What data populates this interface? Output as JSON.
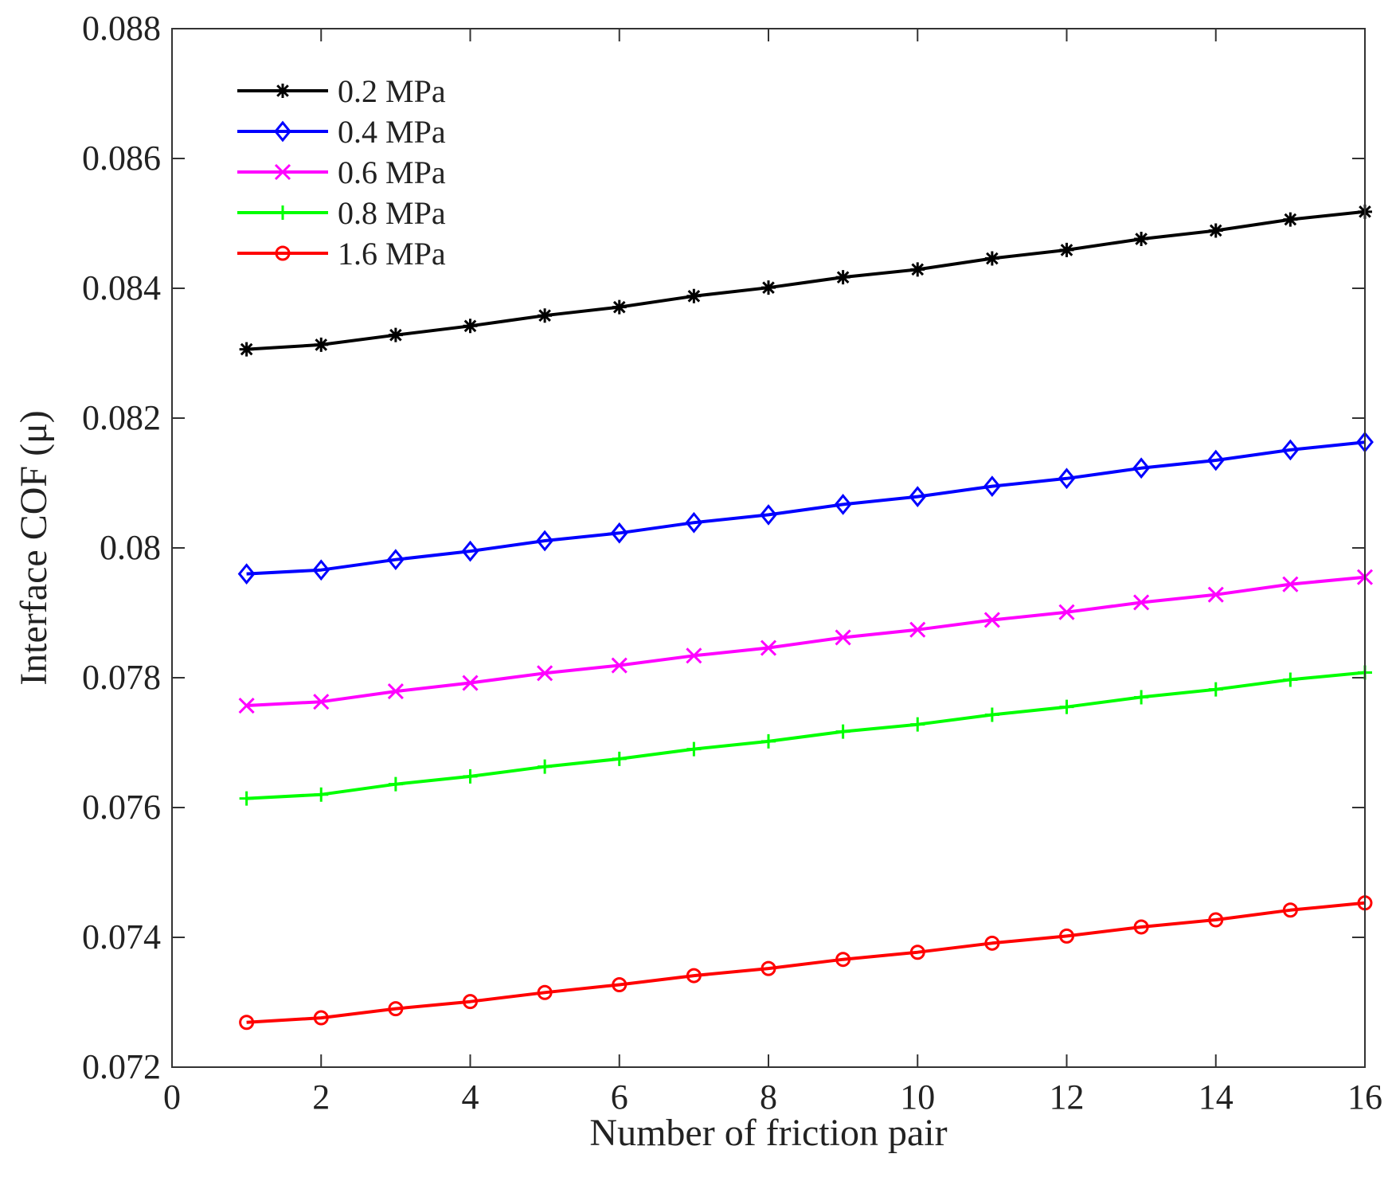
{
  "chart_data": {
    "type": "line",
    "title": "",
    "xlabel": "Number of friction pair",
    "ylabel": "Interface COF (μ)",
    "xlim": [
      0,
      16
    ],
    "ylim": [
      0.072,
      0.088
    ],
    "xticks": [
      "0",
      "2",
      "4",
      "6",
      "8",
      "10",
      "12",
      "14",
      "16"
    ],
    "yticks": [
      "0.072",
      "0.074",
      "0.076",
      "0.078",
      "0.08",
      "0.082",
      "0.084",
      "0.086",
      "0.088"
    ],
    "grid": false,
    "legend_position": "top-left",
    "x": [
      1,
      2,
      3,
      4,
      5,
      6,
      7,
      8,
      9,
      10,
      11,
      12,
      13,
      14,
      15,
      16
    ],
    "series": [
      {
        "name": "0.2 MPa",
        "color": "#000000",
        "marker": "asterisk",
        "values": [
          0.08306,
          0.08313,
          0.08328,
          0.08342,
          0.08358,
          0.08371,
          0.08388,
          0.08401,
          0.08417,
          0.08429,
          0.08446,
          0.08459,
          0.08476,
          0.08489,
          0.08506,
          0.08518
        ]
      },
      {
        "name": "0.4 MPa",
        "color": "#0000ff",
        "marker": "diamond",
        "values": [
          0.0796,
          0.07966,
          0.07982,
          0.07995,
          0.08011,
          0.08023,
          0.08039,
          0.08051,
          0.08067,
          0.08079,
          0.08095,
          0.08107,
          0.08123,
          0.08135,
          0.08151,
          0.08163
        ]
      },
      {
        "name": "0.6 MPa",
        "color": "#ff00ff",
        "marker": "x",
        "values": [
          0.07757,
          0.07763,
          0.07779,
          0.07792,
          0.07807,
          0.07819,
          0.07834,
          0.07846,
          0.07862,
          0.07874,
          0.07889,
          0.07901,
          0.07916,
          0.07928,
          0.07944,
          0.07955
        ]
      },
      {
        "name": "0.8 MPa",
        "color": "#00ff00",
        "marker": "plus",
        "values": [
          0.07614,
          0.0762,
          0.07636,
          0.07648,
          0.07663,
          0.07675,
          0.0769,
          0.07702,
          0.07717,
          0.07728,
          0.07743,
          0.07755,
          0.0777,
          0.07782,
          0.07797,
          0.07808
        ]
      },
      {
        "name": "1.6 MPa",
        "color": "#ff0000",
        "marker": "circle",
        "values": [
          0.07269,
          0.07276,
          0.0729,
          0.07301,
          0.07315,
          0.07327,
          0.07341,
          0.07352,
          0.07366,
          0.07377,
          0.07391,
          0.07402,
          0.07416,
          0.07427,
          0.07442,
          0.07453
        ]
      }
    ]
  }
}
